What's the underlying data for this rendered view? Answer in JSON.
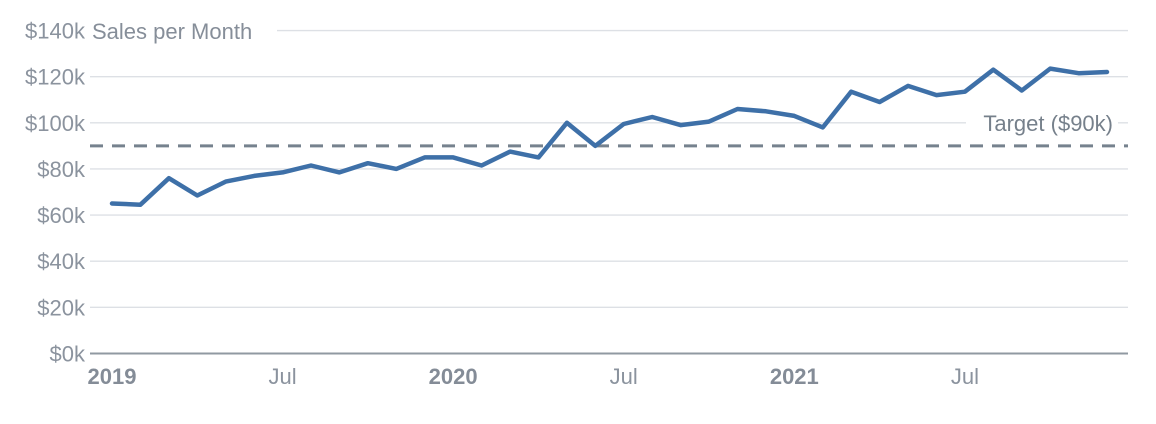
{
  "chart_data": {
    "type": "line",
    "title": "Sales per Month",
    "x": [
      "Jan 2019",
      "Feb 2019",
      "Mar 2019",
      "Apr 2019",
      "May 2019",
      "Jun 2019",
      "Jul 2019",
      "Aug 2019",
      "Sep 2019",
      "Oct 2019",
      "Nov 2019",
      "Dec 2019",
      "Jan 2020",
      "Feb 2020",
      "Mar 2020",
      "Apr 2020",
      "May 2020",
      "Jun 2020",
      "Jul 2020",
      "Aug 2020",
      "Sep 2020",
      "Oct 2020",
      "Nov 2020",
      "Dec 2020",
      "Jan 2021",
      "Feb 2021",
      "Mar 2021",
      "Apr 2021",
      "May 2021",
      "Jun 2021",
      "Jul 2021",
      "Aug 2021",
      "Sep 2021",
      "Oct 2021",
      "Nov 2021",
      "Dec 2021"
    ],
    "series": [
      {
        "name": "Sales per Month",
        "values": [
          65,
          64.5,
          76,
          68.5,
          74.5,
          77,
          78.5,
          81.5,
          78.5,
          82.5,
          80,
          85,
          85,
          81.5,
          87.5,
          85,
          100,
          90,
          99.5,
          102.5,
          99,
          100.5,
          106,
          105,
          103,
          98,
          113.5,
          109,
          116,
          112,
          113.5,
          123,
          114,
          123.5,
          121.5,
          122
        ]
      }
    ],
    "units": "thousand dollars",
    "ylim": [
      0,
      140
    ],
    "y_ticks": [
      {
        "value": 0,
        "label": "$0k"
      },
      {
        "value": 20,
        "label": "$20k"
      },
      {
        "value": 40,
        "label": "$40k"
      },
      {
        "value": 60,
        "label": "$60k"
      },
      {
        "value": 80,
        "label": "$80k"
      },
      {
        "value": 100,
        "label": "$100k"
      },
      {
        "value": 120,
        "label": "$120k"
      },
      {
        "value": 140,
        "label": "$140k"
      }
    ],
    "x_ticks": [
      {
        "month_index": 0,
        "label": "2019",
        "bold": true
      },
      {
        "month_index": 6,
        "label": "Jul",
        "bold": false
      },
      {
        "month_index": 12,
        "label": "2020",
        "bold": true
      },
      {
        "month_index": 18,
        "label": "Jul",
        "bold": false
      },
      {
        "month_index": 24,
        "label": "2021",
        "bold": true
      },
      {
        "month_index": 30,
        "label": "Jul",
        "bold": false
      }
    ],
    "target": {
      "value": 90,
      "label": "Target ($90k)"
    },
    "grid": "horizontal",
    "legend": "none",
    "colors": {
      "line": "#3e70a8",
      "target_line": "#76828e",
      "gridline": "#dde0e5",
      "axis_line": "#9099a2",
      "tick_text": "#8b939e",
      "title_text": "#868e99",
      "target_text": "#76808b",
      "background": "#ffffff"
    }
  }
}
